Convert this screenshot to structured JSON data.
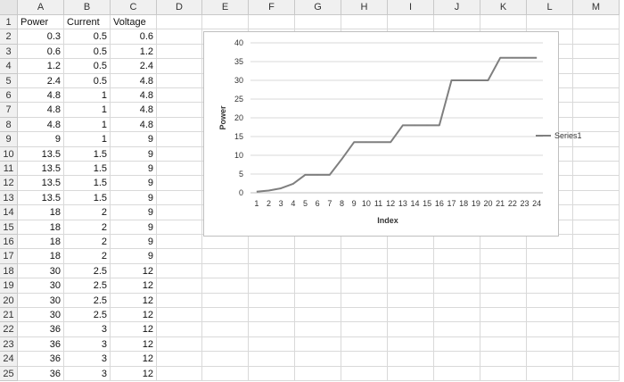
{
  "spreadsheet": {
    "column_headers": [
      "A",
      "B",
      "C",
      "D",
      "E",
      "F",
      "G",
      "H",
      "I",
      "J",
      "K",
      "L",
      "M"
    ],
    "row_numbers": [
      "1",
      "2",
      "3",
      "4",
      "5",
      "6",
      "7",
      "8",
      "9",
      "10",
      "11",
      "12",
      "13",
      "14",
      "15",
      "16",
      "17",
      "18",
      "19",
      "20",
      "21",
      "22",
      "23",
      "24",
      "25"
    ],
    "header_row": [
      "Power",
      "Current",
      "Voltage"
    ],
    "rows": [
      [
        "0.3",
        "0.5",
        "0.6"
      ],
      [
        "0.6",
        "0.5",
        "1.2"
      ],
      [
        "1.2",
        "0.5",
        "2.4"
      ],
      [
        "2.4",
        "0.5",
        "4.8"
      ],
      [
        "4.8",
        "1",
        "4.8"
      ],
      [
        "4.8",
        "1",
        "4.8"
      ],
      [
        "4.8",
        "1",
        "4.8"
      ],
      [
        "9",
        "1",
        "9"
      ],
      [
        "13.5",
        "1.5",
        "9"
      ],
      [
        "13.5",
        "1.5",
        "9"
      ],
      [
        "13.5",
        "1.5",
        "9"
      ],
      [
        "13.5",
        "1.5",
        "9"
      ],
      [
        "18",
        "2",
        "9"
      ],
      [
        "18",
        "2",
        "9"
      ],
      [
        "18",
        "2",
        "9"
      ],
      [
        "18",
        "2",
        "9"
      ],
      [
        "30",
        "2.5",
        "12"
      ],
      [
        "30",
        "2.5",
        "12"
      ],
      [
        "30",
        "2.5",
        "12"
      ],
      [
        "30",
        "2.5",
        "12"
      ],
      [
        "36",
        "3",
        "12"
      ],
      [
        "36",
        "3",
        "12"
      ],
      [
        "36",
        "3",
        "12"
      ],
      [
        "36",
        "3",
        "12"
      ]
    ]
  },
  "chart_data": {
    "type": "line",
    "x": [
      1,
      2,
      3,
      4,
      5,
      6,
      7,
      8,
      9,
      10,
      11,
      12,
      13,
      14,
      15,
      16,
      17,
      18,
      19,
      20,
      21,
      22,
      23,
      24
    ],
    "series": [
      {
        "name": "Series1",
        "values": [
          0.3,
          0.6,
          1.2,
          2.4,
          4.8,
          4.8,
          4.8,
          9,
          13.5,
          13.5,
          13.5,
          13.5,
          18,
          18,
          18,
          18,
          30,
          30,
          30,
          30,
          36,
          36,
          36,
          36
        ]
      }
    ],
    "title": "",
    "xlabel": "Index",
    "ylabel": "Power",
    "ylim": [
      0,
      40
    ],
    "yticks": [
      "0",
      "5",
      "10",
      "15",
      "20",
      "25",
      "30",
      "35",
      "40"
    ],
    "xticks": [
      "1",
      "2",
      "3",
      "4",
      "5",
      "6",
      "7",
      "8",
      "9",
      "10",
      "11",
      "12",
      "13",
      "14",
      "15",
      "16",
      "17",
      "18",
      "19",
      "20",
      "21",
      "22",
      "23",
      "24"
    ],
    "grid": true,
    "legend_position": "right",
    "line_color": "#7f7f7f",
    "grid_color": "#d9d9d9"
  }
}
